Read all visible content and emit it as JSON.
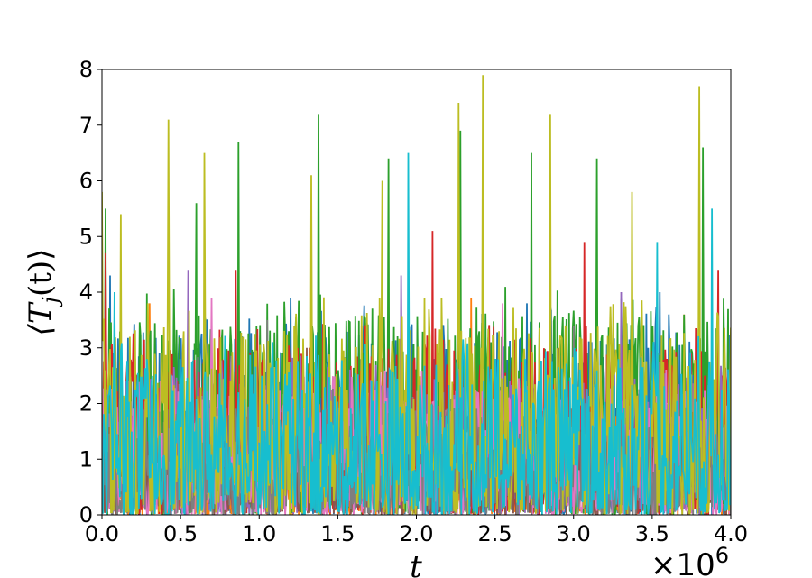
{
  "chart_data": {
    "type": "line",
    "xlabel": "t",
    "ylabel": "⟨T_j(t)⟩",
    "x_offset_label": "×10^6",
    "x_scale": 1000000,
    "xlim": [
      0.0,
      4.0
    ],
    "ylim": [
      0,
      8
    ],
    "x_ticks": [
      "0.0",
      "0.5",
      "1.0",
      "1.5",
      "2.0",
      "2.5",
      "3.0",
      "3.5",
      "4.0"
    ],
    "y_ticks": [
      "0",
      "1",
      "2",
      "3",
      "4",
      "5",
      "6",
      "7",
      "8"
    ],
    "grid": false,
    "legend": "none",
    "series": [
      {
        "color": "#1f77b4",
        "typical_max": 3.3,
        "spikes": [
          [
            0.05,
            4.3
          ],
          [
            1.2,
            3.9
          ],
          [
            2.7,
            3.8
          ],
          [
            3.55,
            4.0
          ]
        ]
      },
      {
        "color": "#ff7f0e",
        "typical_max": 1.9,
        "spikes": [
          [
            0.3,
            3.8
          ],
          [
            1.65,
            3.4
          ],
          [
            2.35,
            3.9
          ],
          [
            3.7,
            3.6
          ]
        ]
      },
      {
        "color": "#2ca02c",
        "typical_max": 3.6,
        "spikes": [
          [
            0.02,
            5.5
          ],
          [
            0.6,
            5.6
          ],
          [
            0.87,
            6.7
          ],
          [
            1.38,
            7.2
          ],
          [
            1.82,
            6.4
          ],
          [
            2.28,
            6.9
          ],
          [
            2.73,
            6.5
          ],
          [
            3.15,
            6.4
          ],
          [
            3.82,
            6.6
          ]
        ]
      },
      {
        "color": "#d62728",
        "typical_max": 3.0,
        "spikes": [
          [
            0.02,
            4.7
          ],
          [
            0.85,
            4.4
          ],
          [
            2.1,
            5.1
          ],
          [
            3.07,
            4.9
          ],
          [
            3.92,
            4.4
          ]
        ]
      },
      {
        "color": "#9467bd",
        "typical_max": 2.5,
        "spikes": [
          [
            0.55,
            4.4
          ],
          [
            1.9,
            4.3
          ],
          [
            3.3,
            4.0
          ]
        ]
      },
      {
        "color": "#8c564b",
        "typical_max": 1.7,
        "spikes": [
          [
            1.3,
            3.0
          ],
          [
            2.9,
            3.0
          ]
        ]
      },
      {
        "color": "#e377c2",
        "typical_max": 2.3,
        "spikes": [
          [
            0.7,
            3.9
          ],
          [
            2.55,
            3.8
          ]
        ]
      },
      {
        "color": "#7f7f7f",
        "typical_max": 2.0,
        "spikes": [
          [
            1.05,
            3.5
          ],
          [
            3.0,
            3.4
          ]
        ]
      },
      {
        "color": "#bcbd22",
        "typical_max": 3.4,
        "spikes": [
          [
            0.0,
            5.8
          ],
          [
            0.12,
            5.4
          ],
          [
            0.42,
            7.1
          ],
          [
            0.65,
            6.5
          ],
          [
            1.33,
            6.1
          ],
          [
            1.78,
            6.0
          ],
          [
            2.27,
            7.4
          ],
          [
            2.42,
            7.9
          ],
          [
            2.85,
            7.2
          ],
          [
            3.37,
            5.8
          ],
          [
            3.8,
            7.7
          ]
        ]
      },
      {
        "color": "#17becf",
        "typical_max": 2.8,
        "spikes": [
          [
            0.08,
            4.0
          ],
          [
            1.95,
            6.5
          ],
          [
            3.53,
            4.9
          ],
          [
            3.88,
            5.5
          ]
        ]
      }
    ]
  }
}
